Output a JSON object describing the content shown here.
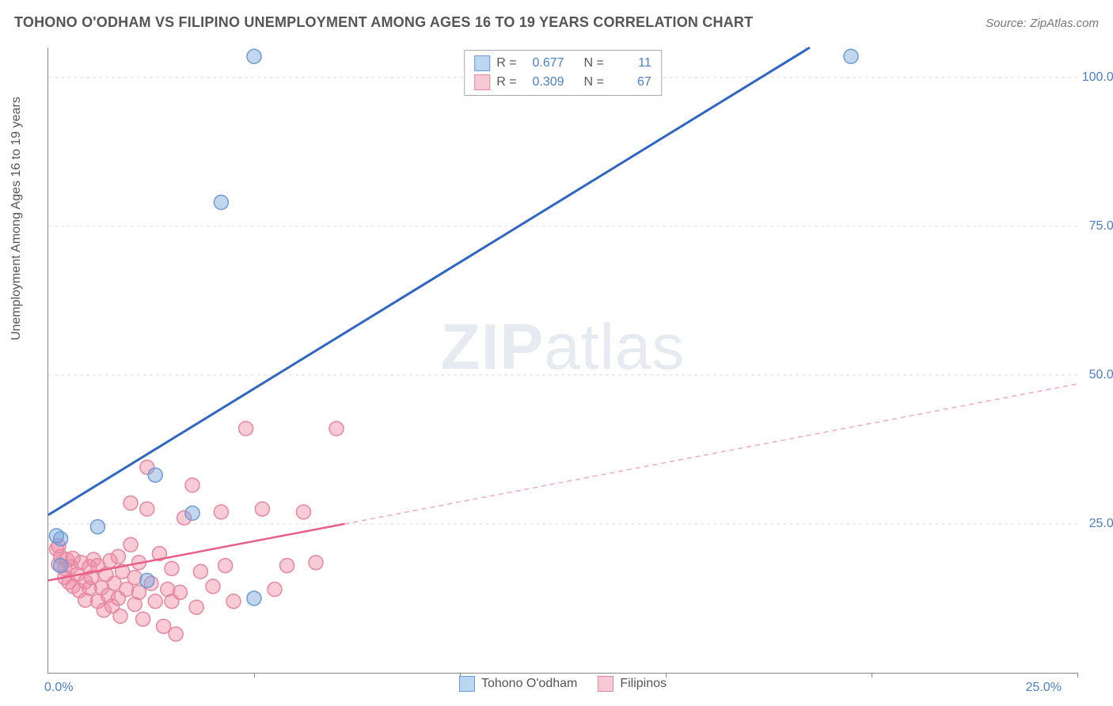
{
  "title": "TOHONO O'ODHAM VS FILIPINO UNEMPLOYMENT AMONG AGES 16 TO 19 YEARS CORRELATION CHART",
  "source_label": "Source:",
  "source_value": "ZipAtlas.com",
  "ylabel": "Unemployment Among Ages 16 to 19 years",
  "watermark_a": "ZIP",
  "watermark_b": "atlas",
  "chart": {
    "type": "scatter-correlation",
    "xlim": [
      0,
      25
    ],
    "ylim": [
      0,
      105
    ],
    "x_origin_label": "0.0%",
    "x_end_label": "25.0%",
    "y_ticks": [
      25.0,
      50.0,
      75.0,
      100.0
    ],
    "y_tick_labels": [
      "25.0%",
      "50.0%",
      "75.0%",
      "100.0%"
    ],
    "x_tick_positions": [
      5,
      10,
      15,
      20,
      25
    ],
    "grid_color": "#dddddd",
    "axis_color": "#888888",
    "background": "#ffffff",
    "series": [
      {
        "name": "Tohono O'odham",
        "color_fill": "rgba(120,165,220,0.45)",
        "color_stroke": "#6a9bd4",
        "swatch_fill": "#bcd5f0",
        "swatch_border": "#6a9bd4",
        "marker_radius": 9,
        "R": "0.677",
        "N": "11",
        "trend": {
          "x1": 0,
          "y1": 26.5,
          "x2": 18.5,
          "y2": 105,
          "color": "#2f66c4",
          "width": 3,
          "dash": "none"
        },
        "points": [
          {
            "x": 0.3,
            "y": 18
          },
          {
            "x": 0.3,
            "y": 22.5
          },
          {
            "x": 0.2,
            "y": 23
          },
          {
            "x": 1.2,
            "y": 24.5
          },
          {
            "x": 2.4,
            "y": 15.5
          },
          {
            "x": 2.6,
            "y": 33.2
          },
          {
            "x": 3.5,
            "y": 26.8
          },
          {
            "x": 5.0,
            "y": 12.5
          },
          {
            "x": 4.2,
            "y": 79
          },
          {
            "x": 5.0,
            "y": 103.5
          },
          {
            "x": 19.5,
            "y": 103.5
          }
        ]
      },
      {
        "name": "Filipinos",
        "color_fill": "rgba(240,140,165,0.45)",
        "color_stroke": "#e5889f",
        "swatch_fill": "#f7c9d4",
        "swatch_border": "#e5889f",
        "marker_radius": 9,
        "R": "0.309",
        "N": "67",
        "trend": {
          "x1": 0,
          "y1": 15.5,
          "x2": 7.2,
          "y2": 25.0,
          "color": "#e85f86",
          "width": 2.5,
          "dash": "none"
        },
        "trend_ext": {
          "x1": 7.2,
          "y1": 25.0,
          "x2": 25,
          "y2": 48.5,
          "color": "#f2a9bb",
          "width": 1.5,
          "dash": "6,5"
        },
        "points": [
          {
            "x": 0.2,
            "y": 20.8
          },
          {
            "x": 0.25,
            "y": 18.2
          },
          {
            "x": 0.3,
            "y": 19.5
          },
          {
            "x": 0.25,
            "y": 21.3
          },
          {
            "x": 0.4,
            "y": 17.5
          },
          {
            "x": 0.4,
            "y": 16
          },
          {
            "x": 0.45,
            "y": 19
          },
          {
            "x": 0.5,
            "y": 15.2
          },
          {
            "x": 0.55,
            "y": 17.8
          },
          {
            "x": 0.6,
            "y": 14.5
          },
          {
            "x": 0.6,
            "y": 19.2
          },
          {
            "x": 0.7,
            "y": 16.5
          },
          {
            "x": 0.75,
            "y": 13.8
          },
          {
            "x": 0.8,
            "y": 18.5
          },
          {
            "x": 0.9,
            "y": 15.3
          },
          {
            "x": 0.9,
            "y": 12.2
          },
          {
            "x": 1.0,
            "y": 14.2
          },
          {
            "x": 1.0,
            "y": 17.8
          },
          {
            "x": 1.05,
            "y": 16
          },
          {
            "x": 1.1,
            "y": 19
          },
          {
            "x": 1.2,
            "y": 12
          },
          {
            "x": 1.2,
            "y": 18
          },
          {
            "x": 1.3,
            "y": 14.3
          },
          {
            "x": 1.35,
            "y": 10.5
          },
          {
            "x": 1.4,
            "y": 16.5
          },
          {
            "x": 1.45,
            "y": 13
          },
          {
            "x": 1.5,
            "y": 18.8
          },
          {
            "x": 1.55,
            "y": 11.2
          },
          {
            "x": 1.6,
            "y": 15
          },
          {
            "x": 1.7,
            "y": 12.5
          },
          {
            "x": 1.7,
            "y": 19.5
          },
          {
            "x": 1.75,
            "y": 9.5
          },
          {
            "x": 1.8,
            "y": 17
          },
          {
            "x": 1.9,
            "y": 14
          },
          {
            "x": 2.0,
            "y": 21.5
          },
          {
            "x": 2.0,
            "y": 28.5
          },
          {
            "x": 2.1,
            "y": 11.5
          },
          {
            "x": 2.1,
            "y": 16
          },
          {
            "x": 2.2,
            "y": 13.5
          },
          {
            "x": 2.2,
            "y": 18.5
          },
          {
            "x": 2.3,
            "y": 9
          },
          {
            "x": 2.4,
            "y": 27.5
          },
          {
            "x": 2.4,
            "y": 34.5
          },
          {
            "x": 2.5,
            "y": 15
          },
          {
            "x": 2.6,
            "y": 12
          },
          {
            "x": 2.7,
            "y": 20
          },
          {
            "x": 2.8,
            "y": 7.8
          },
          {
            "x": 2.9,
            "y": 14
          },
          {
            "x": 3.0,
            "y": 12
          },
          {
            "x": 3.0,
            "y": 17.5
          },
          {
            "x": 3.1,
            "y": 6.5
          },
          {
            "x": 3.2,
            "y": 13.5
          },
          {
            "x": 3.3,
            "y": 26
          },
          {
            "x": 3.5,
            "y": 31.5
          },
          {
            "x": 3.6,
            "y": 11
          },
          {
            "x": 3.7,
            "y": 17
          },
          {
            "x": 4.0,
            "y": 14.5
          },
          {
            "x": 4.2,
            "y": 27
          },
          {
            "x": 4.3,
            "y": 18
          },
          {
            "x": 4.5,
            "y": 12
          },
          {
            "x": 4.8,
            "y": 41
          },
          {
            "x": 5.2,
            "y": 27.5
          },
          {
            "x": 5.5,
            "y": 14
          },
          {
            "x": 5.8,
            "y": 18
          },
          {
            "x": 6.2,
            "y": 27
          },
          {
            "x": 6.5,
            "y": 18.5
          },
          {
            "x": 7.0,
            "y": 41
          }
        ]
      }
    ],
    "legend_labels": {
      "R": "R =",
      "N": "N ="
    }
  }
}
